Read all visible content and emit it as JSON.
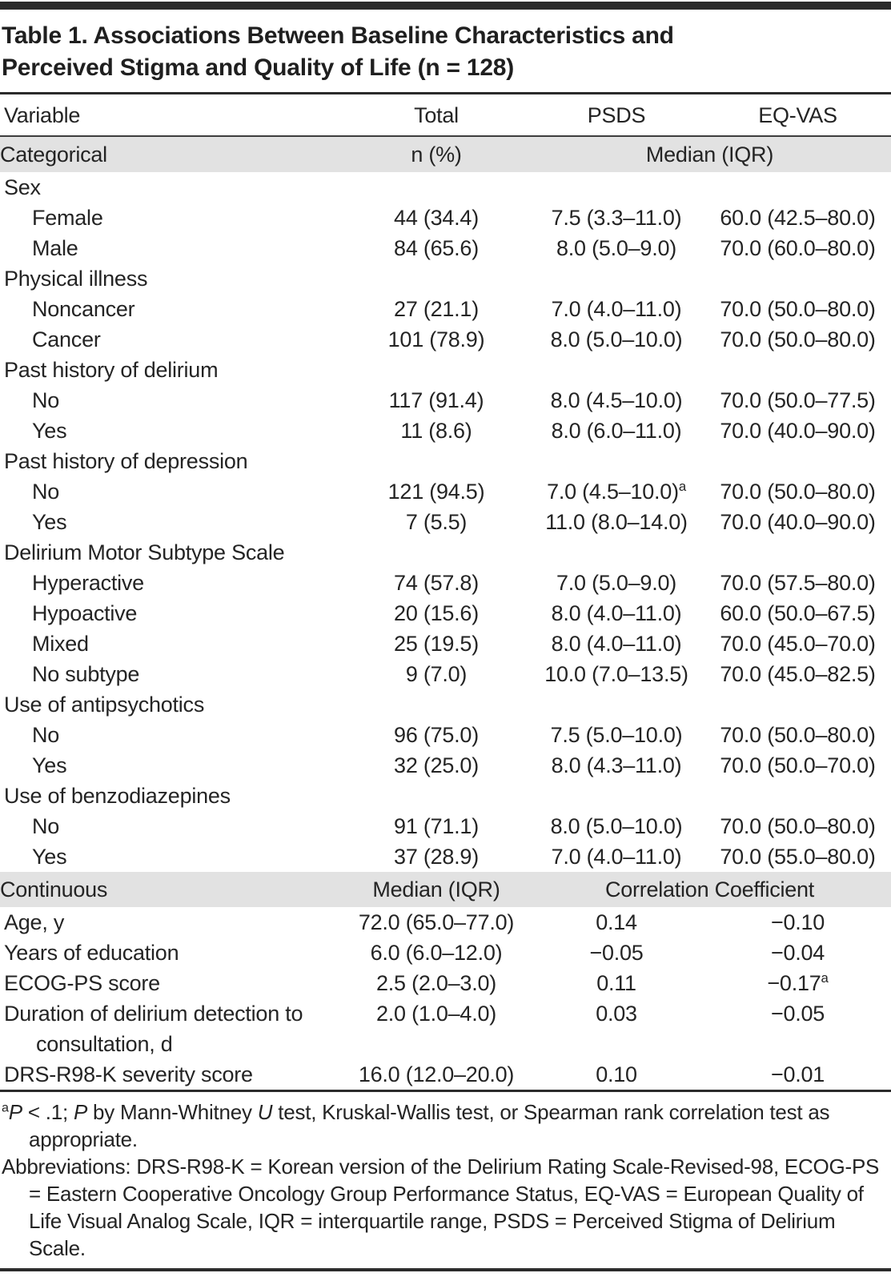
{
  "title_lines": [
    "Table 1. Associations Between Baseline Characteristics and",
    "Perceived Stigma and Quality of Life (n = 128)"
  ],
  "columns": [
    "Variable",
    "Total",
    "PSDS",
    "EQ-VAS"
  ],
  "categorical": {
    "band": {
      "label": "Categorical",
      "total_header": "n (%)",
      "span_header": "Median (IQR)"
    },
    "groups": [
      {
        "label": "Sex",
        "rows": [
          {
            "label": "Female",
            "total": "44 (34.4)",
            "psds": "7.5 (3.3–11.0)",
            "eqvas": "60.0 (42.5–80.0)"
          },
          {
            "label": "Male",
            "total": "84 (65.6)",
            "psds": "8.0 (5.0–9.0)",
            "eqvas": "70.0 (60.0–80.0)"
          }
        ]
      },
      {
        "label": "Physical illness",
        "rows": [
          {
            "label": "Noncancer",
            "total": "27 (21.1)",
            "psds": "7.0 (4.0–11.0)",
            "eqvas": "70.0 (50.0–80.0)"
          },
          {
            "label": "Cancer",
            "total": "101 (78.9)",
            "psds": "8.0 (5.0–10.0)",
            "eqvas": "70.0 (50.0–80.0)"
          }
        ]
      },
      {
        "label": "Past history of delirium",
        "rows": [
          {
            "label": "No",
            "total": "117 (91.4)",
            "psds": "8.0 (4.5–10.0)",
            "eqvas": "70.0 (50.0–77.5)"
          },
          {
            "label": "Yes",
            "total": "11 (8.6)",
            "psds": "8.0 (6.0–11.0)",
            "eqvas": "70.0 (40.0–90.0)"
          }
        ]
      },
      {
        "label": "Past history of depression",
        "rows": [
          {
            "label": "No",
            "total": "121 (94.5)",
            "psds": "7.0 (4.5–10.0)",
            "psds_sup": "a",
            "eqvas": "70.0 (50.0–80.0)"
          },
          {
            "label": "Yes",
            "total": "7 (5.5)",
            "psds": "11.0 (8.0–14.0)",
            "eqvas": "70.0 (40.0–90.0)"
          }
        ]
      },
      {
        "label": "Delirium Motor Subtype Scale",
        "rows": [
          {
            "label": "Hyperactive",
            "total": "74 (57.8)",
            "psds": "7.0 (5.0–9.0)",
            "eqvas": "70.0 (57.5–80.0)"
          },
          {
            "label": "Hypoactive",
            "total": "20 (15.6)",
            "psds": "8.0 (4.0–11.0)",
            "eqvas": "60.0 (50.0–67.5)"
          },
          {
            "label": "Mixed",
            "total": "25 (19.5)",
            "psds": "8.0 (4.0–11.0)",
            "eqvas": "70.0 (45.0–70.0)"
          },
          {
            "label": "No subtype",
            "total": "9 (7.0)",
            "psds": "10.0 (7.0–13.5)",
            "eqvas": "70.0 (45.0–82.5)"
          }
        ]
      },
      {
        "label": "Use of antipsychotics",
        "rows": [
          {
            "label": "No",
            "total": "96 (75.0)",
            "psds": "7.5 (5.0–10.0)",
            "eqvas": "70.0 (50.0–80.0)"
          },
          {
            "label": "Yes",
            "total": "32 (25.0)",
            "psds": "8.0 (4.3–11.0)",
            "eqvas": "70.0 (50.0–70.0)"
          }
        ]
      },
      {
        "label": "Use of benzodiazepines",
        "rows": [
          {
            "label": "No",
            "total": "91 (71.1)",
            "psds": "8.0 (5.0–10.0)",
            "eqvas": "70.0 (50.0–80.0)"
          },
          {
            "label": "Yes",
            "total": "37 (28.9)",
            "psds": "7.0 (4.0–11.0)",
            "eqvas": "70.0 (55.0–80.0)"
          }
        ]
      }
    ]
  },
  "continuous": {
    "band": {
      "label": "Continuous",
      "total_header": "Median (IQR)",
      "span_header": "Correlation Coefficient"
    },
    "rows": [
      {
        "label": "Age, y",
        "median": "72.0 (65.0–77.0)",
        "psds": "0.14",
        "eqvas": "−0.10"
      },
      {
        "label": "Years of education",
        "median": "6.0 (6.0–12.0)",
        "psds": "−0.05",
        "eqvas": "−0.04"
      },
      {
        "label": "ECOG-PS score",
        "median": "2.5 (2.0–3.0)",
        "psds": "0.11",
        "eqvas": "−0.17",
        "eqvas_sup": "a"
      },
      {
        "label": "Duration of delirium detection to consultation, d",
        "median": "2.0 (1.0–4.0)",
        "psds": "0.03",
        "eqvas": "−0.05"
      },
      {
        "label": "DRS-R98-K severity score",
        "median": "16.0 (12.0–20.0)",
        "psds": "0.10",
        "eqvas": "−0.01"
      }
    ]
  },
  "footnotes": [
    {
      "segments": [
        {
          "text": "a",
          "sup": true
        },
        {
          "text": "P",
          "italic": true
        },
        {
          "text": " < .1; "
        },
        {
          "text": "P",
          "italic": true
        },
        {
          "text": " by Mann-Whitney "
        },
        {
          "text": "U",
          "italic": true
        },
        {
          "text": " test, Kruskal-Wallis test, or Spearman rank correlation test as appropriate."
        }
      ]
    },
    {
      "segments": [
        {
          "text": "Abbreviations: DRS-R98-K = Korean version of the Delirium Rating Scale-Revised-98, ECOG-PS = Eastern Cooperative Oncology Group Performance Status, EQ-VAS = European Quality of Life Visual Analog Scale, IQR = interquartile range, PSDS = Perceived Stigma of Delirium Scale."
        }
      ]
    }
  ],
  "colors": {
    "rule": "#2b2b2b",
    "band_bg": "#e2e2e2",
    "text": "#242424"
  }
}
